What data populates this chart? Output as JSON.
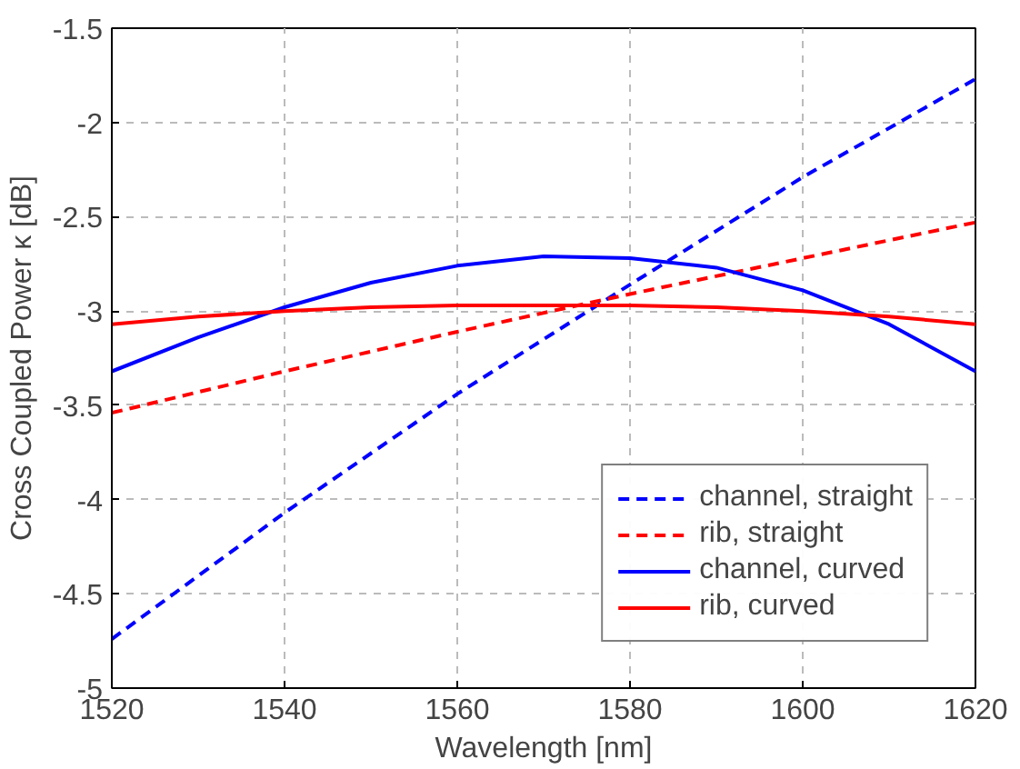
{
  "chart_data": {
    "type": "line",
    "xlabel": "Wavelength [nm]",
    "ylabel": "Cross Coupled Power κ [dB]",
    "xlim": [
      1520,
      1620
    ],
    "ylim": [
      -5,
      -1.5
    ],
    "xticks": [
      1520,
      1540,
      1560,
      1580,
      1600,
      1620
    ],
    "yticks": [
      -5,
      -4.5,
      -4,
      -3.5,
      -3,
      -2.5,
      -2,
      -1.5
    ],
    "grid": true,
    "legend": "bottom right",
    "series": [
      {
        "name": "channel, straight",
        "color": "#0000ff",
        "line_style": "dashed",
        "x": [
          1520,
          1540,
          1560,
          1580,
          1600,
          1620
        ],
        "values": [
          -4.74,
          -4.07,
          -3.44,
          -2.86,
          -2.29,
          -1.77
        ]
      },
      {
        "name": "rib, straight",
        "color": "#ff0000",
        "line_style": "dashed",
        "x": [
          1520,
          1540,
          1560,
          1580,
          1600,
          1620
        ],
        "values": [
          -3.54,
          -3.32,
          -3.11,
          -2.91,
          -2.72,
          -2.53
        ]
      },
      {
        "name": "channel, curved",
        "color": "#0000ff",
        "line_style": "solid",
        "x": [
          1520,
          1530,
          1540,
          1550,
          1560,
          1570,
          1580,
          1590,
          1600,
          1610,
          1620
        ],
        "values": [
          -3.32,
          -3.14,
          -2.98,
          -2.85,
          -2.76,
          -2.71,
          -2.72,
          -2.77,
          -2.89,
          -3.07,
          -3.32
        ]
      },
      {
        "name": "rib, curved",
        "color": "#ff0000",
        "line_style": "solid",
        "x": [
          1520,
          1530,
          1540,
          1550,
          1560,
          1570,
          1580,
          1590,
          1600,
          1610,
          1620
        ],
        "values": [
          -3.07,
          -3.03,
          -3.0,
          -2.98,
          -2.97,
          -2.97,
          -2.97,
          -2.98,
          -3.0,
          -3.03,
          -3.07
        ]
      }
    ]
  }
}
